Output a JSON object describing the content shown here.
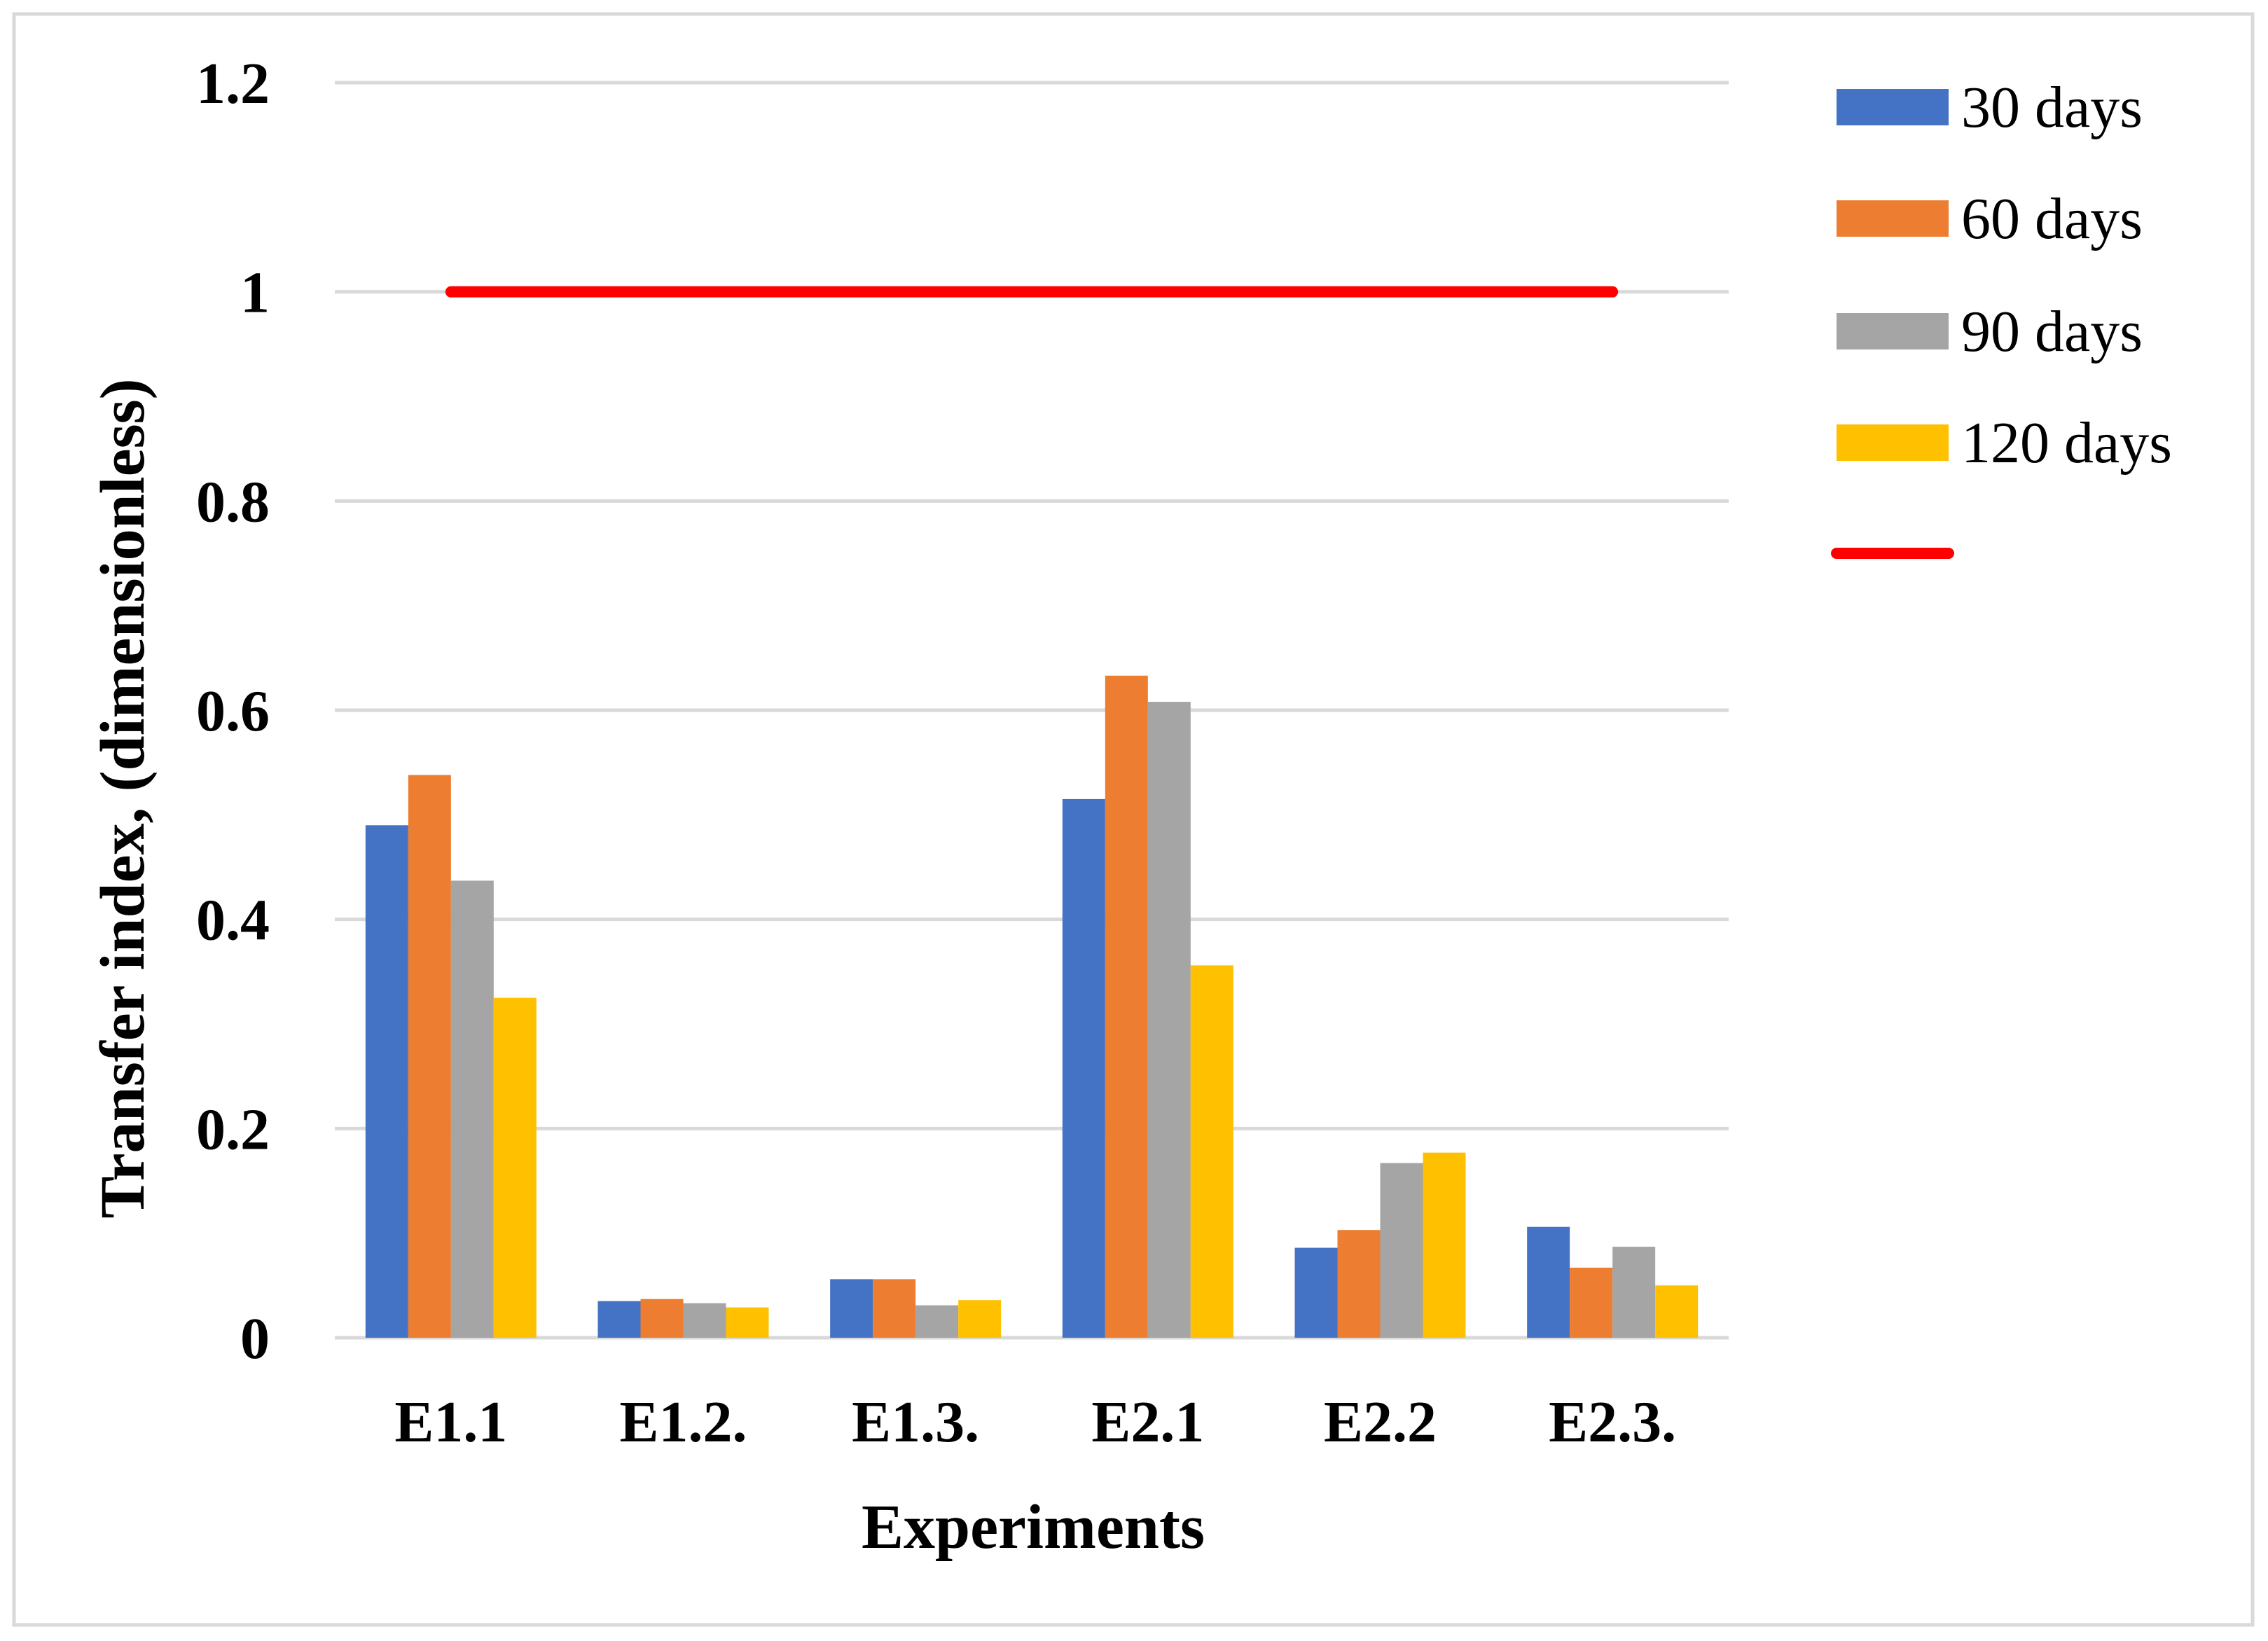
{
  "chart_data": {
    "type": "bar",
    "title": "",
    "xlabel": "Experiments",
    "ylabel": "Transfer index, (dimensionless)",
    "categories": [
      "E1.1",
      "E1.2.",
      "E1.3.",
      "E2.1",
      "E2.2",
      "E2.3."
    ],
    "ylim": [
      0,
      1.2
    ],
    "yticks": [
      "0",
      "0.2",
      "0.4",
      "0.6",
      "0.8",
      "1",
      "1.2"
    ],
    "grid": true,
    "legend_position": "right",
    "series": [
      {
        "name": "30 days",
        "color": "#4472C4",
        "values": [
          0.49,
          0.035,
          0.056,
          0.515,
          0.086,
          0.106
        ]
      },
      {
        "name": "60 days",
        "color": "#ED7D31",
        "values": [
          0.538,
          0.037,
          0.056,
          0.633,
          0.103,
          0.067
        ]
      },
      {
        "name": "90 days",
        "color": "#A5A5A5",
        "values": [
          0.437,
          0.033,
          0.031,
          0.608,
          0.167,
          0.087
        ]
      },
      {
        "name": "120 days",
        "color": "#FFC000",
        "values": [
          0.325,
          0.029,
          0.036,
          0.356,
          0.177,
          0.05
        ]
      }
    ],
    "reference_line": {
      "value": 1,
      "color": "#FF0000",
      "from_category": "E1.1",
      "to_category": "E2.3.",
      "name": ""
    }
  }
}
